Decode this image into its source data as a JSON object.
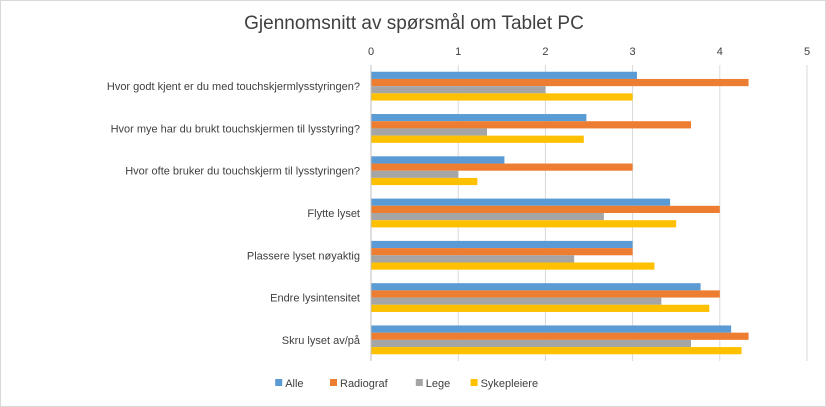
{
  "chart_data": {
    "type": "bar",
    "orientation": "horizontal",
    "title": "Gjennomsnitt av spørsmål om Tablet PC",
    "xlim": [
      0,
      5
    ],
    "xticks": [
      0,
      1,
      2,
      3,
      4,
      5
    ],
    "grid": true,
    "legend_position": "bottom",
    "categories": [
      "Hvor godt kjent er du med touchskjermlysstyringen?",
      "Hvor mye har du brukt touchskjermen til lysstyring?",
      "Hvor ofte bruker du touchskjerm til lysstyringen?",
      "Flytte lyset",
      "Plassere lyset nøyaktig",
      "Endre lysintensitet",
      "Skru lyset av/på"
    ],
    "series": [
      {
        "name": "Alle",
        "color": "#5b9bd5",
        "values": [
          3.05,
          2.47,
          1.53,
          3.43,
          3.0,
          3.78,
          4.13
        ]
      },
      {
        "name": "Radiograf",
        "color": "#ed7d31",
        "values": [
          4.33,
          3.67,
          3.0,
          4.0,
          3.0,
          4.0,
          4.33
        ]
      },
      {
        "name": "Lege",
        "color": "#a5a5a5",
        "values": [
          2.0,
          1.33,
          1.0,
          2.67,
          2.33,
          3.33,
          3.67
        ]
      },
      {
        "name": "Sykepleiere",
        "color": "#ffc000",
        "values": [
          3.0,
          2.44,
          1.22,
          3.5,
          3.25,
          3.88,
          4.25
        ]
      }
    ]
  }
}
